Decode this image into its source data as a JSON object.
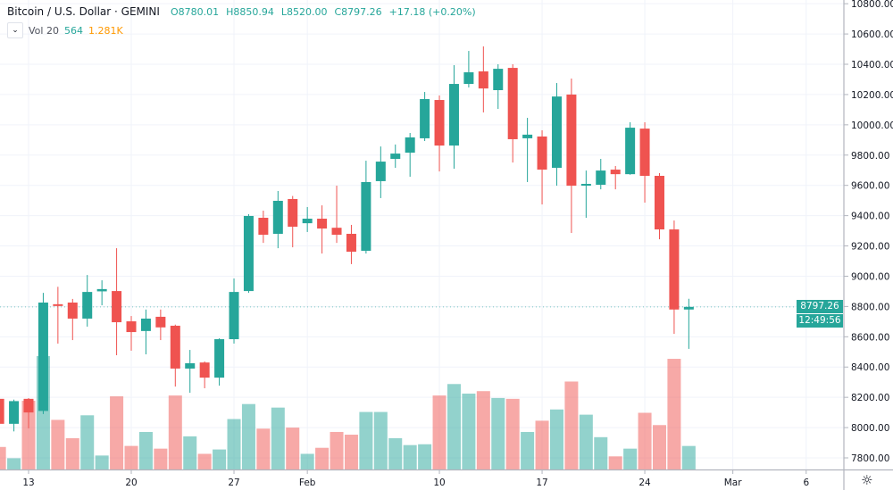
{
  "header": {
    "title": "Bitcoin / U.S. Dollar · GEMINI",
    "open": "O8780.01",
    "high": "H8850.94",
    "low": "L8520.00",
    "close": "C8797.26",
    "change": "+17.18 (+0.20%)",
    "volume_label": "Vol 20",
    "volume_value": "564",
    "volume_ma": "1.281K"
  },
  "price_tag": {
    "price": "8797.26",
    "countdown": "12:49:56"
  },
  "icons": {
    "collapse": "chevron-down-icon",
    "settings": "gear-icon"
  },
  "colors": {
    "up": "#26a69a",
    "down": "#ef5350",
    "volume_ma": "#ff9800"
  },
  "chart_data": {
    "type": "candlestick",
    "title": "Bitcoin / U.S. Dollar · GEMINI",
    "ylim": [
      7750,
      10800
    ],
    "grid": true,
    "y_ticks": [
      "10800.00",
      "10600.00",
      "10400.00",
      "10200.00",
      "10000.00",
      "9800.00",
      "9600.00",
      "9400.00",
      "9200.00",
      "9000.00",
      "8800.00",
      "8600.00",
      "8400.00",
      "8200.00",
      "8000.00",
      "7800.00"
    ],
    "x_ticks": [
      {
        "label": "13",
        "date": "2020-01-13"
      },
      {
        "label": "20",
        "date": "2020-01-20"
      },
      {
        "label": "27",
        "date": "2020-01-27"
      },
      {
        "label": "Feb",
        "date": "2020-02-01"
      },
      {
        "label": "10",
        "date": "2020-02-10"
      },
      {
        "label": "17",
        "date": "2020-02-17"
      },
      {
        "label": "24",
        "date": "2020-02-24"
      },
      {
        "label": "Mar",
        "date": "2020-03-01"
      },
      {
        "label": "6",
        "date": "2020-03-06"
      }
    ],
    "columns": [
      "date",
      "open",
      "high",
      "low",
      "close",
      "volume"
    ],
    "candles": [
      [
        "2020-01-11",
        8190,
        8200,
        8010,
        8025,
        540
      ],
      [
        "2020-01-12",
        8025,
        8185,
        7975,
        8175,
        270
      ],
      [
        "2020-01-13",
        8190,
        8195,
        7995,
        8100,
        1650
      ],
      [
        "2020-01-14",
        8110,
        8890,
        8090,
        8826,
        2720
      ],
      [
        "2020-01-15",
        8815,
        8930,
        8555,
        8810,
        1190
      ],
      [
        "2020-01-16",
        8826,
        8850,
        8578,
        8720,
        750
      ],
      [
        "2020-01-17",
        8720,
        9008,
        8667,
        8896,
        1300
      ],
      [
        "2020-01-18",
        8900,
        8973,
        8808,
        8915,
        335
      ],
      [
        "2020-01-19",
        8902,
        9185,
        8478,
        8696,
        1755
      ],
      [
        "2020-01-20",
        8702,
        8737,
        8508,
        8631,
        565
      ],
      [
        "2020-01-21",
        8638,
        8780,
        8484,
        8720,
        900
      ],
      [
        "2020-01-22",
        8732,
        8780,
        8578,
        8662,
        500
      ],
      [
        "2020-01-23",
        8673,
        8680,
        8271,
        8390,
        1775
      ],
      [
        "2020-01-24",
        8390,
        8513,
        8230,
        8425,
        795
      ],
      [
        "2020-01-25",
        8430,
        8437,
        8260,
        8330,
        375
      ],
      [
        "2020-01-26",
        8330,
        8590,
        8277,
        8584,
        480
      ],
      [
        "2020-01-27",
        8584,
        8985,
        8555,
        8896,
        1210
      ],
      [
        "2020-01-28",
        8902,
        9410,
        8890,
        9398,
        1570
      ],
      [
        "2020-01-29",
        9386,
        9433,
        9220,
        9274,
        980
      ],
      [
        "2020-01-30",
        9280,
        9563,
        9185,
        9498,
        1485
      ],
      [
        "2020-01-31",
        9510,
        9530,
        9191,
        9327,
        1005
      ],
      [
        "2020-02-01",
        9350,
        9457,
        9292,
        9380,
        375
      ],
      [
        "2020-02-02",
        9380,
        9468,
        9150,
        9315,
        520
      ],
      [
        "2020-02-03",
        9320,
        9598,
        9220,
        9274,
        900
      ],
      [
        "2020-02-04",
        9280,
        9339,
        9080,
        9162,
        835
      ],
      [
        "2020-02-05",
        9168,
        9763,
        9150,
        9622,
        1380
      ],
      [
        "2020-02-06",
        9628,
        9857,
        9516,
        9757,
        1380
      ],
      [
        "2020-02-07",
        9775,
        9870,
        9716,
        9810,
        750
      ],
      [
        "2020-02-08",
        9816,
        9946,
        9657,
        9917,
        585
      ],
      [
        "2020-02-09",
        9911,
        10217,
        9893,
        10170,
        605
      ],
      [
        "2020-02-10",
        10164,
        10194,
        9692,
        9863,
        1775
      ],
      [
        "2020-02-11",
        9863,
        10394,
        9710,
        10270,
        2050
      ],
      [
        "2020-02-12",
        10270,
        10488,
        10247,
        10347,
        1820
      ],
      [
        "2020-02-13",
        10353,
        10518,
        10082,
        10240,
        1880
      ],
      [
        "2020-02-14",
        10229,
        10400,
        10105,
        10370,
        1715
      ],
      [
        "2020-02-15",
        10376,
        10400,
        9751,
        9905,
        1695
      ],
      [
        "2020-02-16",
        9911,
        10046,
        9622,
        9935,
        900
      ],
      [
        "2020-02-17",
        9923,
        9964,
        9474,
        9704,
        1170
      ],
      [
        "2020-02-18",
        9716,
        10276,
        9598,
        10187,
        1440
      ],
      [
        "2020-02-19",
        10200,
        10306,
        9286,
        9598,
        2110
      ],
      [
        "2020-02-20",
        9598,
        9698,
        9386,
        9610,
        1315
      ],
      [
        "2020-02-21",
        9604,
        9775,
        9574,
        9698,
        775
      ],
      [
        "2020-02-22",
        9704,
        9728,
        9574,
        9674,
        315
      ],
      [
        "2020-02-23",
        9674,
        10017,
        9670,
        9981,
        500
      ],
      [
        "2020-02-24",
        9975,
        10017,
        9486,
        9663,
        1360
      ],
      [
        "2020-02-25",
        9663,
        9681,
        9244,
        9309,
        1065
      ],
      [
        "2020-02-26",
        9309,
        9368,
        8619,
        8780,
        2655
      ],
      [
        "2020-02-27",
        8780.01,
        8850.94,
        8520.0,
        8797.26,
        564
      ]
    ]
  }
}
